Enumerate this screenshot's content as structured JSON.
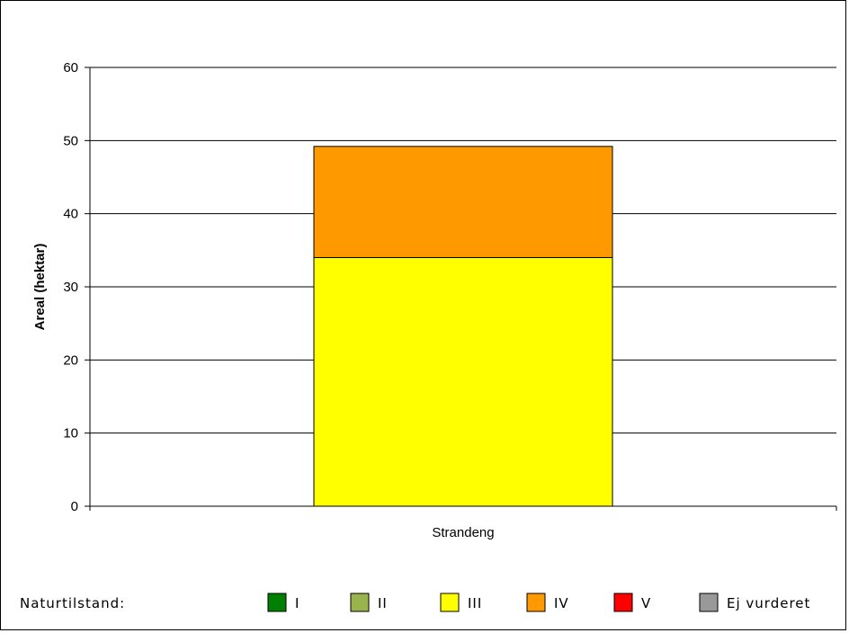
{
  "chart_data": {
    "type": "bar",
    "stacked": true,
    "categories": [
      "Strandeng"
    ],
    "series": [
      {
        "name": "I",
        "values": [
          0
        ],
        "color": "#008000"
      },
      {
        "name": "II",
        "values": [
          0
        ],
        "color": "#99b34d"
      },
      {
        "name": "III",
        "values": [
          34
        ],
        "color": "#ffff00"
      },
      {
        "name": "IV",
        "values": [
          15.2
        ],
        "color": "#ff9900"
      },
      {
        "name": "V",
        "values": [
          0
        ],
        "color": "#ff0000"
      },
      {
        "name": "Ej vurderet",
        "values": [
          0
        ],
        "color": "#999999"
      }
    ],
    "ylabel": "Areal (hektar)",
    "xlabel": "",
    "ylim": [
      0,
      60
    ],
    "yticks": [
      0,
      10,
      20,
      30,
      40,
      50,
      60
    ],
    "grid": true,
    "legend": {
      "title": "Naturtilstand:",
      "position": "bottom"
    }
  }
}
